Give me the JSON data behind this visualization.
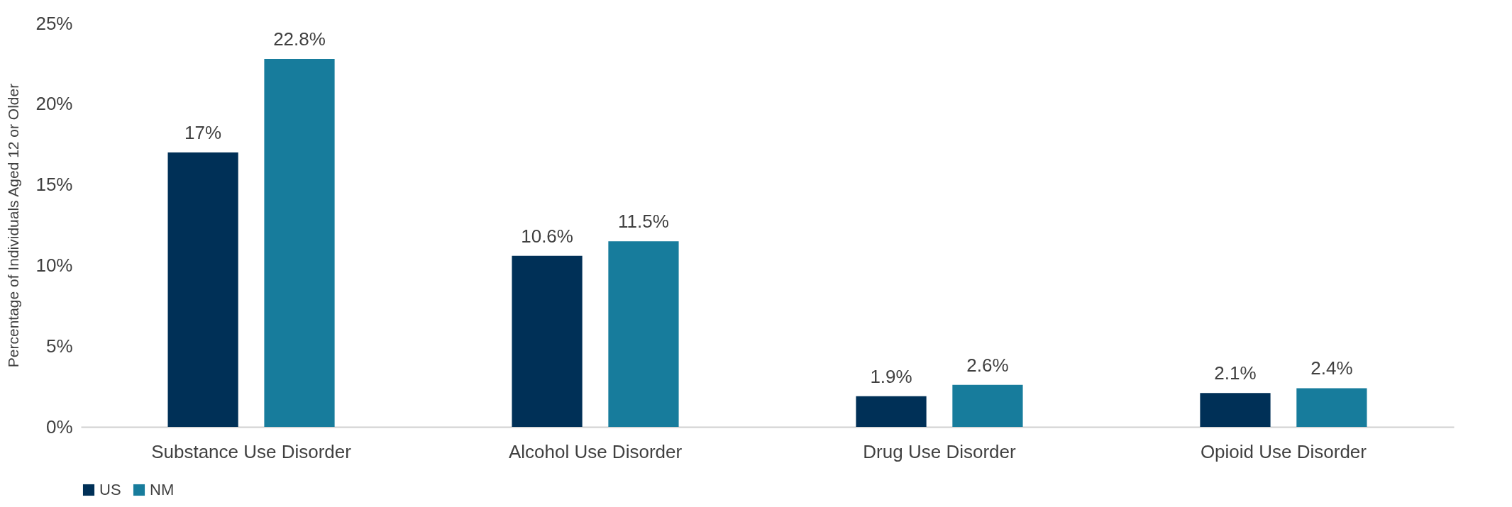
{
  "chart_data": {
    "type": "bar",
    "ylabel": "Percentage of Individuals Aged 12 or Older",
    "categories": [
      "Substance Use Disorder",
      "Alcohol Use Disorder",
      "Drug Use Disorder",
      "Opioid Use Disorder"
    ],
    "series": [
      {
        "name": "US",
        "color": "#003057",
        "values": [
          17,
          10.6,
          1.9,
          2.1
        ],
        "value_labels": [
          "17%",
          "10.6%",
          "1.9%",
          "2.1%"
        ]
      },
      {
        "name": "NM",
        "color": "#177c9c",
        "values": [
          22.8,
          11.5,
          2.6,
          2.4
        ],
        "value_labels": [
          "22.8%",
          "11.5%",
          "2.6%",
          "2.4%"
        ]
      }
    ],
    "ylim": [
      0,
      25
    ],
    "yticks": [
      {
        "value": 0,
        "label": "0%"
      },
      {
        "value": 5,
        "label": "5%"
      },
      {
        "value": 10,
        "label": "10%"
      },
      {
        "value": 15,
        "label": "15%"
      },
      {
        "value": 20,
        "label": "20%"
      },
      {
        "value": 25,
        "label": "25%"
      }
    ],
    "grid": false,
    "legend": "bottom"
  }
}
